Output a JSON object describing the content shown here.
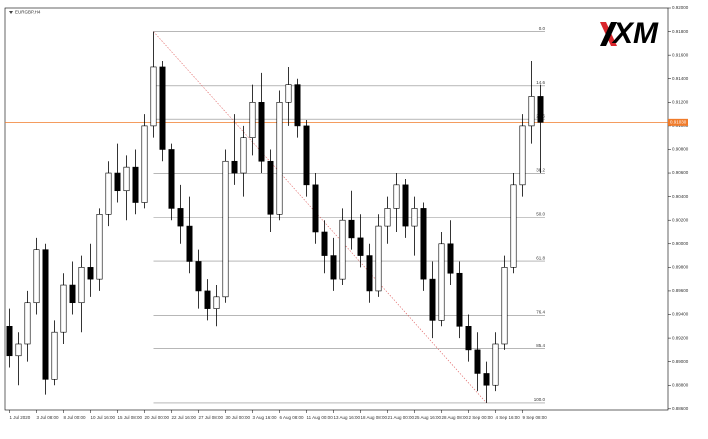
{
  "chart_data": {
    "type": "candlestick",
    "symbol": "EURGBP,H4",
    "brand": "XM",
    "categories": [
      "1 Jul 2020",
      null,
      null,
      "3 Jul 08:00",
      null,
      null,
      "8 Jul 00:00",
      null,
      null,
      "10 Jul 16:00",
      null,
      null,
      "15 Jul 08:00",
      null,
      null,
      "20 Jul 00:00",
      null,
      null,
      "22 Jul 16:00",
      null,
      null,
      "27 Jul 08:00",
      null,
      null,
      "30 Jul 00:00",
      null,
      null,
      "3 Aug 16:00",
      null,
      null,
      "6 Aug 08:00",
      null,
      null,
      "11 Aug 00:00",
      null,
      null,
      "13 Aug 16:00",
      null,
      null,
      "18 Aug 08:00",
      null,
      null,
      "21 Aug 00:00",
      null,
      null,
      "25 Aug 16:00",
      null,
      null,
      "28 Aug 08:00",
      null,
      null,
      "2 Sep 00:00",
      null,
      null,
      "4 Sep 16:00",
      null,
      null,
      "9 Sep 08:00",
      null,
      null
    ],
    "open": [
      0.893,
      0.8905,
      0.8915,
      0.895,
      0.8995,
      0.8885,
      0.8925,
      0.8965,
      0.895,
      0.898,
      0.897,
      0.9025,
      0.906,
      0.9045,
      0.9065,
      0.9035,
      0.91,
      0.915,
      0.908,
      0.903,
      0.9015,
      0.8985,
      0.896,
      0.8945,
      0.8955,
      0.907,
      0.906,
      0.909,
      0.912,
      0.907,
      0.9025,
      0.912,
      0.9135,
      0.91,
      0.905,
      0.901,
      0.899,
      0.897,
      0.902,
      0.9005,
      0.899,
      0.896,
      0.9015,
      0.903,
      0.905,
      0.9015,
      0.903,
      0.897,
      0.8935,
      0.9,
      0.8975,
      0.893,
      0.891,
      0.889,
      0.888,
      0.8915,
      0.898,
      0.905,
      0.91,
      0.9125
    ],
    "high": [
      0.8945,
      0.8925,
      0.896,
      0.9005,
      0.9,
      0.8935,
      0.8975,
      0.8985,
      0.899,
      0.9,
      0.903,
      0.907,
      0.9085,
      0.9075,
      0.908,
      0.911,
      0.918,
      0.9155,
      0.9085,
      0.905,
      0.904,
      0.8995,
      0.897,
      0.8965,
      0.908,
      0.911,
      0.91,
      0.9135,
      0.9145,
      0.908,
      0.913,
      0.915,
      0.914,
      0.9105,
      0.906,
      0.902,
      0.9005,
      0.903,
      0.9045,
      0.9025,
      0.9,
      0.9025,
      0.904,
      0.906,
      0.9055,
      0.904,
      0.9035,
      0.8985,
      0.901,
      0.902,
      0.8985,
      0.894,
      0.8925,
      0.89,
      0.8925,
      0.899,
      0.906,
      0.911,
      0.9155,
      0.9135
    ],
    "low": [
      0.8895,
      0.888,
      0.89,
      0.894,
      0.8872,
      0.888,
      0.8915,
      0.894,
      0.8925,
      0.8955,
      0.896,
      0.9015,
      0.9035,
      0.902,
      0.9025,
      0.903,
      0.909,
      0.907,
      0.902,
      0.9,
      0.8975,
      0.8945,
      0.8935,
      0.893,
      0.895,
      0.905,
      0.904,
      0.9075,
      0.906,
      0.901,
      0.902,
      0.91,
      0.909,
      0.904,
      0.9,
      0.8975,
      0.896,
      0.8965,
      0.8995,
      0.898,
      0.895,
      0.8955,
      0.9,
      0.901,
      0.9005,
      0.899,
      0.896,
      0.892,
      0.893,
      0.8965,
      0.892,
      0.89,
      0.8875,
      0.8865,
      0.8875,
      0.891,
      0.8975,
      0.904,
      0.9085,
      0.906
    ],
    "close": [
      0.8905,
      0.8915,
      0.895,
      0.8995,
      0.8885,
      0.8925,
      0.8965,
      0.895,
      0.898,
      0.897,
      0.9025,
      0.906,
      0.9045,
      0.9065,
      0.9035,
      0.91,
      0.915,
      0.908,
      0.903,
      0.9015,
      0.8985,
      0.896,
      0.8945,
      0.8955,
      0.907,
      0.906,
      0.909,
      0.912,
      0.907,
      0.9025,
      0.912,
      0.9135,
      0.91,
      0.905,
      0.901,
      0.899,
      0.897,
      0.902,
      0.9005,
      0.899,
      0.896,
      0.9015,
      0.903,
      0.905,
      0.9015,
      0.903,
      0.897,
      0.8935,
      0.9,
      0.8975,
      0.893,
      0.891,
      0.889,
      0.888,
      0.8915,
      0.898,
      0.905,
      0.91,
      0.9125,
      0.9103
    ],
    "up_color": "#ffffff",
    "down_color": "#000000",
    "ylim": [
      0.8859,
      0.92
    ],
    "yticks": [
      {
        "value": 0.886,
        "label": "0.88600"
      },
      {
        "value": 0.888,
        "label": "0.88800"
      },
      {
        "value": 0.89,
        "label": "0.89000"
      },
      {
        "value": 0.892,
        "label": "0.89200"
      },
      {
        "value": 0.894,
        "label": "0.89400"
      },
      {
        "value": 0.896,
        "label": "0.89600"
      },
      {
        "value": 0.898,
        "label": "0.89800"
      },
      {
        "value": 0.9,
        "label": "0.90000"
      },
      {
        "value": 0.902,
        "label": "0.90200"
      },
      {
        "value": 0.904,
        "label": "0.90400"
      },
      {
        "value": 0.906,
        "label": "0.90600"
      },
      {
        "value": 0.908,
        "label": "0.90800"
      },
      {
        "value": 0.91,
        "label": "0.91000"
      },
      {
        "value": 0.912,
        "label": "0.91200"
      },
      {
        "value": 0.914,
        "label": "0.91400"
      },
      {
        "value": 0.916,
        "label": "0.91600"
      },
      {
        "value": 0.918,
        "label": "0.91800"
      },
      {
        "value": 0.92,
        "label": "0.92000"
      }
    ],
    "fibonacci": {
      "color": "#8c8c8c",
      "trend_color": "#e06060",
      "levels": [
        {
          "label": "0.0",
          "value": 0.918
        },
        {
          "label": "14.6",
          "value": 0.9134
        },
        {
          "label": "23.6",
          "value": 0.91057
        },
        {
          "label": "38.2",
          "value": 0.90597
        },
        {
          "label": "50.0",
          "value": 0.90225
        },
        {
          "label": "61.8",
          "value": 0.89853
        },
        {
          "label": "76.4",
          "value": 0.89393
        },
        {
          "label": "85.4",
          "value": 0.8911
        },
        {
          "label": "100.0",
          "value": 0.8865
        }
      ]
    },
    "current_price": {
      "value": 0.9103,
      "label": "0.91030",
      "color": "#f07b2a"
    }
  }
}
